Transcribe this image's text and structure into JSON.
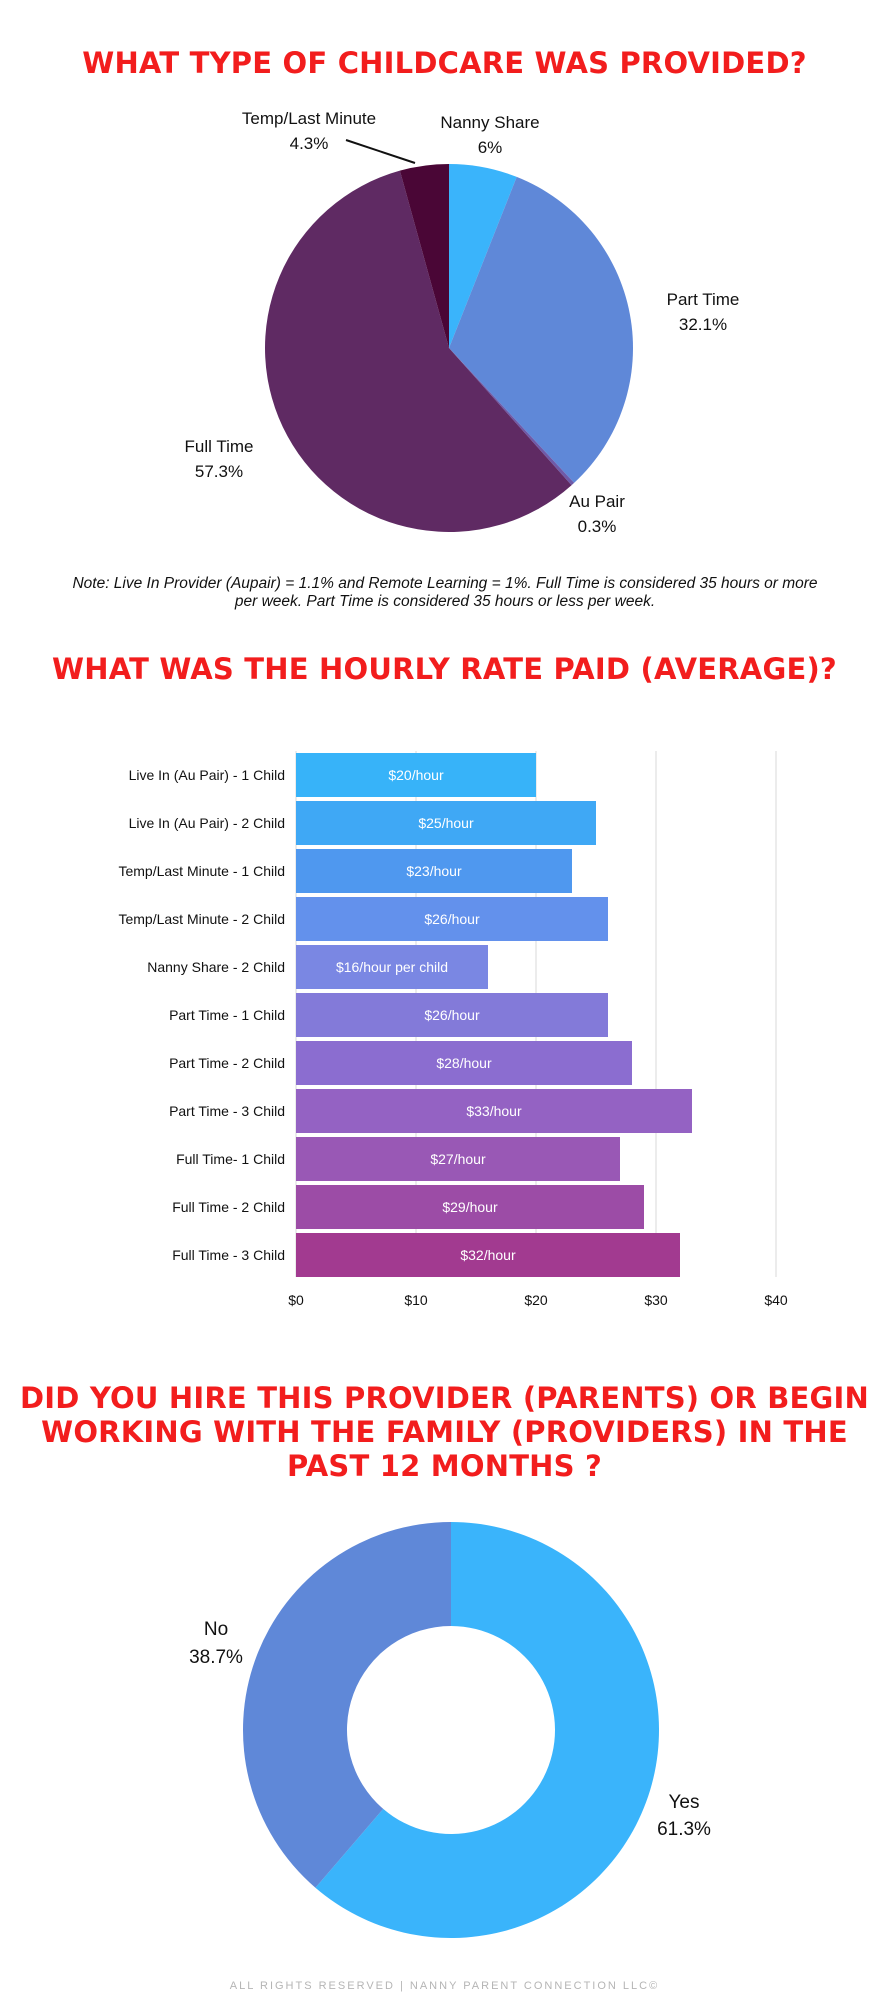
{
  "chart_data": [
    {
      "type": "pie",
      "title": "WHAT TYPE OF CHILDCARE WAS PROVIDED?",
      "slices": [
        {
          "label": "Nanny Share",
          "value": 6,
          "value_label": "6%",
          "color": "#3ab4fb"
        },
        {
          "label": "Part Time",
          "value": 32.1,
          "value_label": "32.1%",
          "color": "#5f88d8"
        },
        {
          "label": "Au Pair",
          "value": 0.3,
          "value_label": "0.3%",
          "color": "#6e5aa8"
        },
        {
          "label": "Full Time",
          "value": 57.3,
          "value_label": "57.3%",
          "color": "#5f2a63"
        },
        {
          "label": "Temp/Last Minute",
          "value": 4.3,
          "value_label": "4.3%",
          "color": "#4a0636"
        }
      ]
    },
    {
      "type": "bar",
      "orientation": "horizontal",
      "title": "WHAT WAS THE HOURLY RATE PAID (AVERAGE)?",
      "categories": [
        "Live In (Au Pair) - 1 Child",
        "Live In (Au Pair) - 2 Child",
        "Temp/Last Minute - 1 Child",
        "Temp/Last Minute - 2 Child",
        "Nanny Share - 2 Child",
        "Part Time - 1 Child",
        "Part Time - 2 Child",
        "Part Time - 3 Child",
        "Full Time- 1 Child",
        "Full Time - 2 Child",
        "Full Time - 3 Child"
      ],
      "values": [
        20,
        25,
        23,
        26,
        16,
        26,
        28,
        33,
        27,
        29,
        32
      ],
      "value_labels": [
        "$20/hour",
        "$25/hour",
        "$23/hour",
        "$26/hour",
        "$16/hour per child",
        "$26/hour",
        "$28/hour",
        "$33/hour",
        "$27/hour",
        "$29/hour",
        "$32/hour"
      ],
      "colors": [
        "#37b3f9",
        "#3fa8f5",
        "#4f98ef",
        "#6391ec",
        "#7a87e3",
        "#837ad9",
        "#8b6dd0",
        "#9462c3",
        "#9958b5",
        "#9c4ca6",
        "#a23a90"
      ],
      "xlim": [
        0,
        40
      ],
      "xticks": [
        0,
        10,
        20,
        30,
        40
      ],
      "xtick_labels": [
        "$0",
        "$10",
        "$20",
        "$30",
        "$40"
      ],
      "grid": true
    },
    {
      "type": "pie",
      "variant": "donut",
      "title": "DID YOU HIRE THIS PROVIDER (PARENTS) OR BEGIN WORKING WITH THE FAMILY (PROVIDERS) IN THE PAST 12 MONTHS ?",
      "slices": [
        {
          "label": "Yes",
          "value": 61.3,
          "value_label": "61.3%",
          "color": "#3ab4fb"
        },
        {
          "label": "No",
          "value": 38.7,
          "value_label": "38.7%",
          "color": "#5f88d8"
        }
      ]
    }
  ],
  "section1": {
    "note": "Note: Live In Provider (Aupair) = 1.1% and Remote Learning = 1%. Full Time is considered 35 hours or more per week. Part Time is considered 35 hours or less per week."
  },
  "footer": {
    "text": "ALL RIGHTS RESERVED | NANNY PARENT CONNECTION LLC©"
  }
}
